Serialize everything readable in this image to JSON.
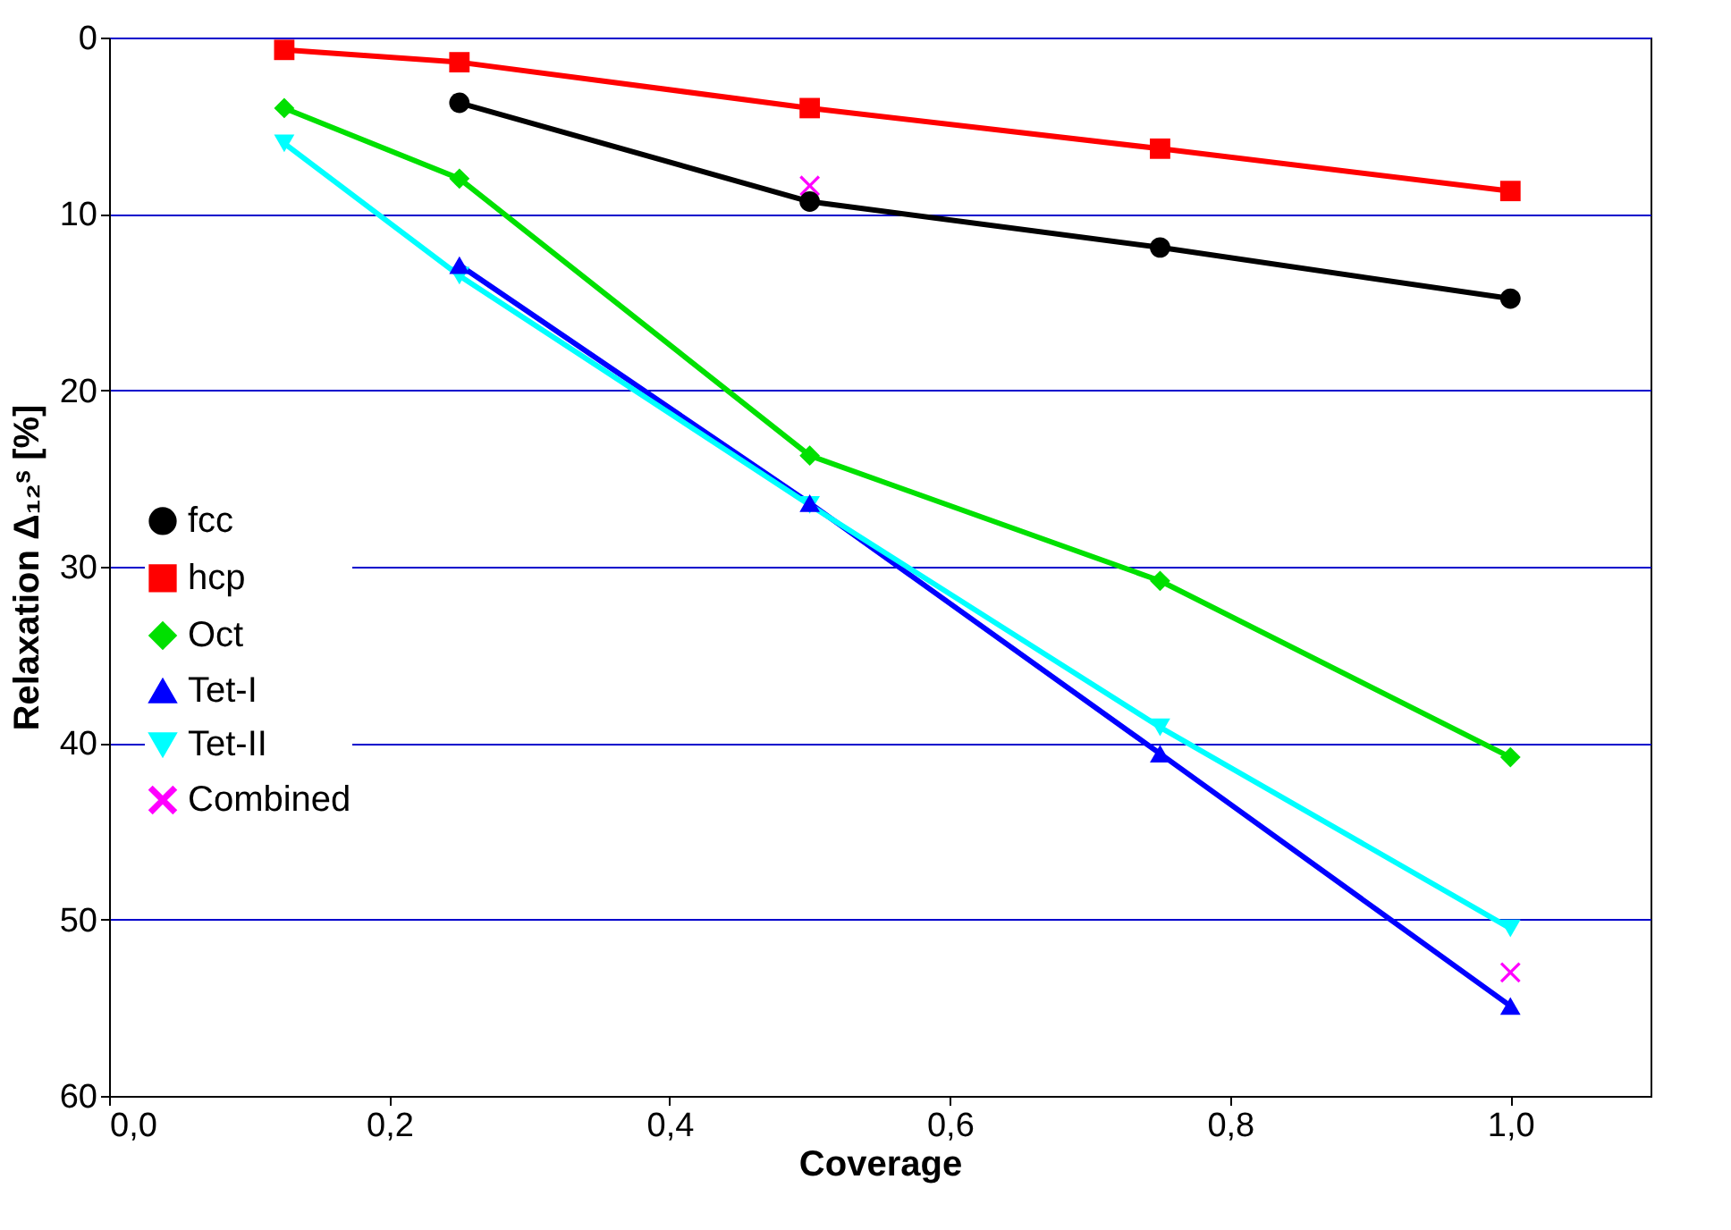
{
  "chart_data": {
    "type": "line",
    "xlabel": "Coverage",
    "ylabel": "Relaxation Δ₁₂ˢ [%]",
    "xlim": [
      0,
      1.1
    ],
    "xticks": [
      {
        "value": 0,
        "label": "0,0"
      },
      {
        "value": 0.2,
        "label": "0,2"
      },
      {
        "value": 0.4,
        "label": "0,4"
      },
      {
        "value": 0.6,
        "label": "0,6"
      },
      {
        "value": 0.8,
        "label": "0,8"
      },
      {
        "value": 1,
        "label": "1,0"
      }
    ],
    "ylim": [
      60,
      0
    ],
    "yticks": [
      0,
      10,
      20,
      30,
      40,
      50,
      60
    ],
    "grid": "y",
    "legend": "left",
    "line_style": "solid",
    "series": [
      {
        "name": "fcc",
        "color": "#000000",
        "marker": "circle",
        "x": [
          0.25,
          0.5,
          0.75,
          1.0
        ],
        "values": [
          3.7,
          9.3,
          11.9,
          14.8
        ]
      },
      {
        "name": "hcp",
        "color": "#ff0000",
        "marker": "square",
        "x": [
          0.125,
          0.25,
          0.5,
          0.75,
          1.0
        ],
        "values": [
          0.7,
          1.4,
          4.0,
          6.3,
          8.7
        ]
      },
      {
        "name": "Oct",
        "color": "#00e000",
        "marker": "diamond",
        "x": [
          0.125,
          0.25,
          0.5,
          0.75,
          1.0
        ],
        "values": [
          4.0,
          8.0,
          23.7,
          30.8,
          40.8
        ]
      },
      {
        "name": "Tet-I",
        "color": "#0000ff",
        "marker": "triangle",
        "x": [
          0.25,
          0.5,
          0.75,
          1.0
        ],
        "values": [
          12.9,
          26.4,
          40.6,
          54.9
        ]
      },
      {
        "name": "Tet-II",
        "color": "#00ffff",
        "marker": "triangle-down",
        "x": [
          0.125,
          0.25,
          0.5,
          0.75,
          1.0
        ],
        "values": [
          6.0,
          13.5,
          26.5,
          39.1,
          50.5
        ]
      },
      {
        "name": "Combined",
        "color": "#ff00ff",
        "type": "scatter",
        "marker": "cross",
        "x": [
          0.5,
          1.0
        ],
        "values": [
          8.4,
          53.0
        ]
      }
    ]
  }
}
